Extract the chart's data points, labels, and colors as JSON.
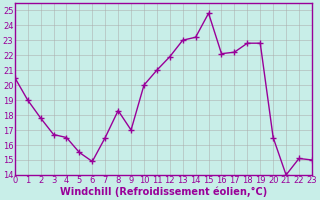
{
  "x": [
    0,
    1,
    2,
    3,
    4,
    5,
    6,
    7,
    8,
    9,
    10,
    11,
    12,
    13,
    14,
    15,
    16,
    17,
    18,
    19,
    20,
    21,
    22,
    23
  ],
  "y": [
    20.5,
    19.0,
    17.8,
    16.7,
    16.5,
    15.5,
    14.9,
    16.5,
    18.3,
    17.0,
    20.0,
    21.0,
    21.9,
    23.0,
    23.2,
    24.8,
    22.1,
    22.2,
    22.8,
    22.8,
    16.5,
    14.0,
    15.1,
    15.0
  ],
  "line_color": "#990099",
  "marker": "+",
  "markersize": 4,
  "linewidth": 1.0,
  "xlabel": "Windchill (Refroidissement éolien,°C)",
  "xlabel_fontsize": 7,
  "bg_color": "#c8eee8",
  "plot_bg_color": "#c8eee8",
  "grid_color": "#aaaaaa",
  "ylim": [
    14,
    25.5
  ],
  "xlim": [
    0,
    23
  ],
  "yticks": [
    14,
    15,
    16,
    17,
    18,
    19,
    20,
    21,
    22,
    23,
    24,
    25
  ],
  "xticks": [
    0,
    1,
    2,
    3,
    4,
    5,
    6,
    7,
    8,
    9,
    10,
    11,
    12,
    13,
    14,
    15,
    16,
    17,
    18,
    19,
    20,
    21,
    22,
    23
  ],
  "tick_fontsize": 6,
  "axis_color": "#990099",
  "spine_color": "#990099"
}
